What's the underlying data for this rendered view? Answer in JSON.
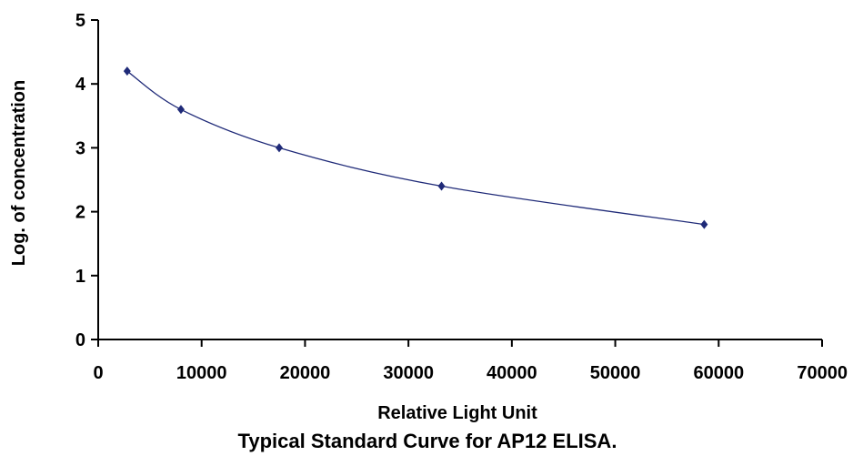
{
  "chart_data": {
    "type": "scatter",
    "caption": "Typical Standard Curve for AP12 ELISA.",
    "xlabel": "Relative Light Unit",
    "ylabel": "Log. of concentration",
    "xlim": [
      0,
      70000
    ],
    "ylim": [
      0,
      5
    ],
    "x_ticks": [
      0,
      10000,
      20000,
      30000,
      40000,
      50000,
      60000,
      70000
    ],
    "x_tick_labels": [
      "0",
      "10000",
      "20000",
      "30000",
      "40000",
      "50000",
      "60000",
      "70000"
    ],
    "y_ticks": [
      0,
      1,
      2,
      3,
      4,
      5
    ],
    "y_tick_labels": [
      "0",
      "1",
      "2",
      "3",
      "4",
      "5"
    ],
    "grid": false,
    "series": [
      {
        "x": [
          2800,
          8000,
          17500,
          33200,
          58600
        ],
        "y": [
          4.2,
          3.6,
          3.0,
          2.4,
          1.8
        ],
        "color": "#1f2a78",
        "trendline": "smooth"
      }
    ]
  }
}
